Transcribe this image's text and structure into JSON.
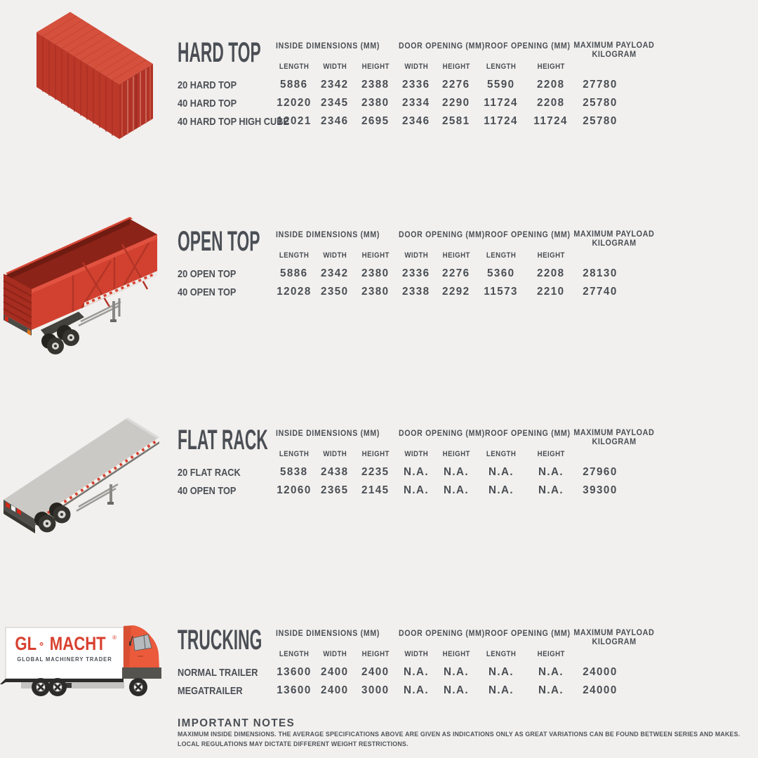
{
  "page": {
    "background": "#f1f0ee",
    "text_color": "#4a4e54",
    "accent_red": "#d8402f",
    "container_red_top": "#d5513e",
    "container_red_side": "#bc3829",
    "deck_gray": "#cbc9c5"
  },
  "table": {
    "group_headers": [
      "INSIDE DIMENSIONS (MM)",
      "DOOR OPENING (MM)",
      "ROOF OPENING (MM)"
    ],
    "payload_header": [
      "MAXIMUM PAYLOAD",
      "KILOGRAM"
    ],
    "column_headers": [
      "LENGTH",
      "WIDTH",
      "HEIGHT",
      "WIDTH",
      "HEIGHT",
      "LENGTH",
      "HEIGHT"
    ]
  },
  "sections": [
    {
      "title": "HARD TOP",
      "illustration": "red-shipping-container",
      "rows": [
        {
          "label": "20 HARD TOP",
          "values": [
            "5886",
            "2342",
            "2388",
            "2336",
            "2276",
            "5590",
            "2208",
            "27780"
          ]
        },
        {
          "label": "40 HARD TOP",
          "values": [
            "12020",
            "2345",
            "2380",
            "2334",
            "2290",
            "11724",
            "2208",
            "25780"
          ]
        },
        {
          "label": "40 HARD TOP HIGH CUBE",
          "values": [
            "12021",
            "2346",
            "2695",
            "2346",
            "2581",
            "11724",
            "11724",
            "25780"
          ]
        }
      ]
    },
    {
      "title": "OPEN TOP",
      "illustration": "red-open-top-trailer",
      "rows": [
        {
          "label": "20 OPEN TOP",
          "values": [
            "5886",
            "2342",
            "2380",
            "2336",
            "2276",
            "5360",
            "2208",
            "28130"
          ]
        },
        {
          "label": "40 OPEN TOP",
          "values": [
            "12028",
            "2350",
            "2380",
            "2338",
            "2292",
            "11573",
            "2210",
            "27740"
          ]
        }
      ]
    },
    {
      "title": "FLAT RACK",
      "illustration": "flat-rack-trailer",
      "rows": [
        {
          "label": "20 FLAT RACK",
          "values": [
            "5838",
            "2438",
            "2235",
            "N.A.",
            "N.A.",
            "N.A.",
            "N.A.",
            "27960"
          ]
        },
        {
          "label": "40 OPEN TOP",
          "values": [
            "12060",
            "2365",
            "2145",
            "N.A.",
            "N.A.",
            "N.A.",
            "N.A.",
            "39300"
          ]
        }
      ]
    },
    {
      "title": "TRUCKING",
      "illustration": "glomacht-box-truck",
      "rows": [
        {
          "label": "NORMAL TRAILER",
          "values": [
            "13600",
            "2400",
            "2400",
            "N.A.",
            "N.A.",
            "N.A.",
            "N.A.",
            "24000"
          ]
        },
        {
          "label": "MEGATRAILER",
          "values": [
            "13600",
            "2400",
            "3000",
            "N.A.",
            "N.A.",
            "N.A.",
            "N.A.",
            "24000"
          ]
        }
      ]
    }
  ],
  "truck_branding": {
    "brand_left": "GL",
    "brand_right": "MACHT",
    "trademark": "®",
    "tagline": "GLOBAL MACHINERY TRADER"
  },
  "notes": {
    "title": "IMPORTANT NOTES",
    "lines": [
      "MAXIMUM INSIDE DIMENSIONS. THE AVERAGE SPECIFICATIONS ABOVE ARE GIVEN AS INDICATIONS ONLY AS GREAT VARIATIONS CAN BE FOUND BETWEEN SERIES AND MAKES.",
      "LOCAL REGULATIONS MAY DICTATE DIFFERENT WEIGHT RESTRICTIONS."
    ]
  }
}
